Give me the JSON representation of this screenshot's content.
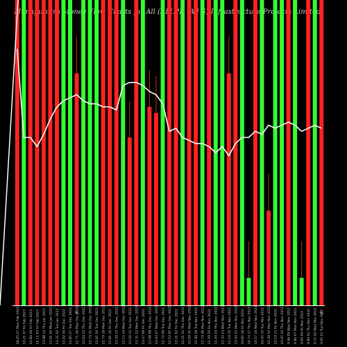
{
  "page_title": "MunafaSutra Money Flow Charts for All  (ALLPI) (All S) Infrastructure Projects Limited",
  "chart_data": {
    "type": "bar",
    "title": "MunafaSutra Money Flow Charts for All  (ALLPI) (All S) Infrastructure Projects Limited",
    "ylim": [
      0,
      100
    ],
    "grid": false,
    "legend": "none",
    "colors": {
      "up": "#33ff33",
      "down": "#ff2222",
      "line": "#ffffff",
      "wick": "#b04010",
      "axis": "#ffffff",
      "background": "#000000"
    },
    "categories": [
      "18.05 27 Mon Feb 2023",
      "10.21 07 Fri Feb 2023",
      "13.80 20 Fri Feb 2023",
      "14.11 03 Fri Feb 2023",
      "13.88 14 Thu Jan 2023",
      "13.61 04 Wed Jan 2023",
      "13.21 02 Tue Jan 2023",
      "13.02 30 Fri Dec 2022",
      "12.85 27 Tue Dec 2022",
      "12.71 26 Mon Dec 2022",
      "12.64 22 Thu Dec 2022",
      "12.70 21 Wed Dec 2022",
      "12.81 20 Tue Dec 2022",
      "12.79 19 Mon Dec 2022",
      "12.81 16 Fri Dec 2022",
      "12.59 15 Thu Dec 2022",
      "13.15 14 Wed Dec 2022",
      "13.06 13 Tue Dec 2022",
      "13.31 12 Mon Dec 2022",
      "13.47 09 Fri Dec 2022",
      "13.08 08 Thu Dec 2022",
      "12.93 07 Wed Dec 2022",
      "12.72 06 Tue Dec 2022",
      "12.54 05 Mon Dec 2022",
      "12.41 02 Fri Dec 2022",
      "12.21 01 Thu Dec 2022",
      "12.00 30 Wed Nov 2022",
      "11.90 29 Tue Nov 2022",
      "11.79 28 Mon Nov 2022",
      "11.59 25 Fri Nov 2022",
      "11.40 24 Thu Nov 2022",
      "11.32 23 Wed Nov 2022",
      "11.19 22 Tue Nov 2022",
      "11.04 21 Mon Nov 2022",
      "10.85 18 Fri Nov 2022",
      "10.74 17 Thu Nov 2022",
      "10.57 16 Wed Nov 2022",
      "10.45 15 Tue Nov 2022",
      "10.30 14 Mon Nov 2022",
      "10.19 11 Fri Nov 2022",
      "10.05 10 Thu Nov 2022",
      "9.96 09 Wed Nov 2022",
      "9.90 07 Mon Nov 2022",
      "9.84 04 Fri Nov 2022",
      "9.80 03 Thu Nov 2022",
      "9.72 02 Wed Nov 2022",
      "9.65 01 Tue Nov 2022"
    ],
    "bar_colors": [
      "down",
      "up",
      "down",
      "down",
      "down",
      "down",
      "down",
      "up",
      "up",
      "down",
      "up",
      "up",
      "up",
      "down",
      "down",
      "down",
      "up",
      "down",
      "down",
      "up",
      "down",
      "down",
      "up",
      "down",
      "down",
      "up",
      "down",
      "down",
      "up",
      "down",
      "up",
      "up",
      "down",
      "down",
      "up",
      "up",
      "down",
      "up",
      "down",
      "up",
      "up",
      "down",
      "up",
      "up",
      "down",
      "up",
      "down"
    ],
    "values": [
      100,
      100,
      100,
      100,
      100,
      100,
      100,
      100,
      100,
      76,
      100,
      100,
      100,
      100,
      100,
      100,
      100,
      55,
      100,
      100,
      65,
      63,
      100,
      100,
      100,
      100,
      100,
      100,
      100,
      100,
      100,
      100,
      76,
      100,
      100,
      9,
      100,
      100,
      31,
      100,
      100,
      100,
      100,
      9,
      100,
      100,
      100
    ],
    "wick_markers": [
      {
        "label": "%",
        "index": 9
      },
      {
        "label": "%",
        "index": 46
      }
    ],
    "line_values": [
      84,
      55,
      55,
      52,
      56,
      61,
      65,
      67,
      68,
      69,
      67,
      66,
      66,
      65,
      65,
      64,
      72,
      73,
      73,
      72,
      70,
      69,
      66,
      57,
      58,
      55,
      54,
      53,
      53,
      52,
      50,
      52,
      49,
      53,
      55,
      55,
      57,
      56,
      59,
      58,
      59,
      60,
      59,
      57,
      58,
      59,
      58
    ]
  }
}
